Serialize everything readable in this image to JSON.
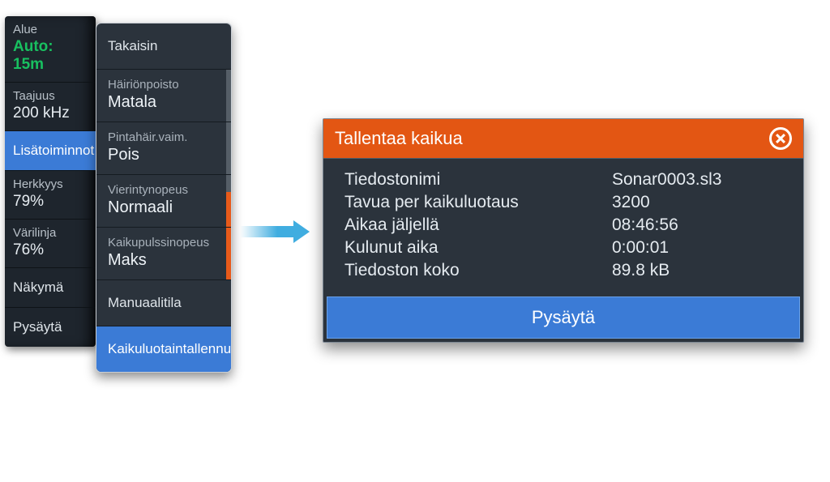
{
  "colors": {
    "panel_bg": "#2b333c",
    "panel_bg_dark": "#1e252d",
    "selected_blue": "#3b7bd6",
    "accent_orange": "#e35613",
    "tick_dim": "#555e67",
    "tick_hot": "#e85a1a",
    "auto_green": "#18c060",
    "arrow_blue": "#40ade0",
    "text_primary": "#e5ebf0",
    "text_secondary": "#a9b2bb",
    "dialog_border": "#7d8894"
  },
  "menu1": {
    "items": [
      {
        "label": "Alue",
        "value": "Auto: 15m",
        "value_style": "auto"
      },
      {
        "label": "Taajuus",
        "value": "200 kHz"
      },
      {
        "label": "Lisätoiminnot",
        "selected": true
      },
      {
        "label": "Herkkyys",
        "value": "79%"
      },
      {
        "label": "Värilinja",
        "value": "76%"
      },
      {
        "label": "Näkymä"
      },
      {
        "label": "Pysäytä"
      }
    ]
  },
  "menu2": {
    "items": [
      {
        "label": "Takaisin"
      },
      {
        "label": "Häiriönpoisto",
        "value": "Matala",
        "ticks": [
          "dim",
          "dim",
          "dim"
        ]
      },
      {
        "label": "Pintahäir.vaim.",
        "value": "Pois",
        "ticks": [
          "dim",
          "dim",
          "dim"
        ]
      },
      {
        "label": "Vierintynopeus",
        "value": "Normaali",
        "ticks": [
          "dim",
          "hot",
          "hot"
        ]
      },
      {
        "label": "Kaikupulssinopeus",
        "value": "Maks",
        "ticks": [
          "hot",
          "hot",
          "hot"
        ]
      },
      {
        "label": "Manuaalitila"
      },
      {
        "label": "Kaikuluotaintallennus",
        "selected": true
      }
    ]
  },
  "dialog": {
    "title": "Tallentaa kaikua",
    "close_icon": "close-icon",
    "rows": [
      {
        "k": "Tiedostonimi",
        "v": "Sonar0003.sl3"
      },
      {
        "k": "Tavua per kaikuluotaus",
        "v": "3200"
      },
      {
        "k": "Aikaa jäljellä",
        "v": "08:46:56"
      },
      {
        "k": "Kulunut aika",
        "v": "0:00:01"
      },
      {
        "k": "Tiedoston koko",
        "v": "89.8 kB"
      }
    ],
    "stop_label": "Pysäytä"
  }
}
